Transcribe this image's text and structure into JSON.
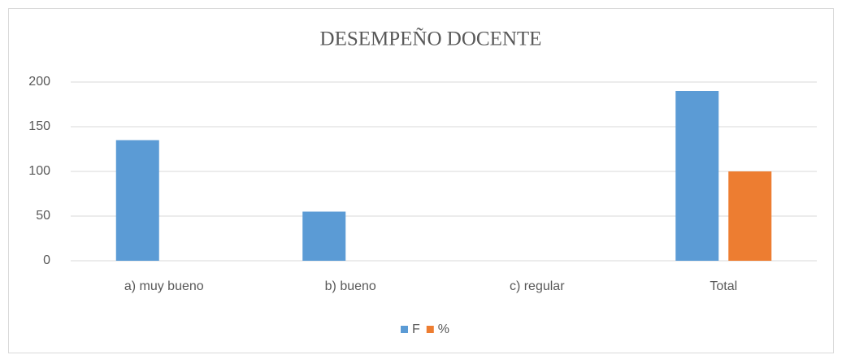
{
  "chart_data": {
    "type": "bar",
    "title": "DESEMPEÑO DOCENTE",
    "categories": [
      "a) muy bueno",
      "b) bueno",
      "c) regular",
      "Total"
    ],
    "series": [
      {
        "name": "F",
        "color": "#5b9bd5",
        "values": [
          135,
          55,
          0,
          190
        ]
      },
      {
        "name": "%",
        "color": "#ed7d31",
        "values": [
          null,
          null,
          null,
          100
        ]
      }
    ],
    "ylim": [
      0,
      200
    ],
    "yticks": [
      0,
      50,
      100,
      150,
      200
    ],
    "grid": true,
    "legend": "bottom"
  }
}
